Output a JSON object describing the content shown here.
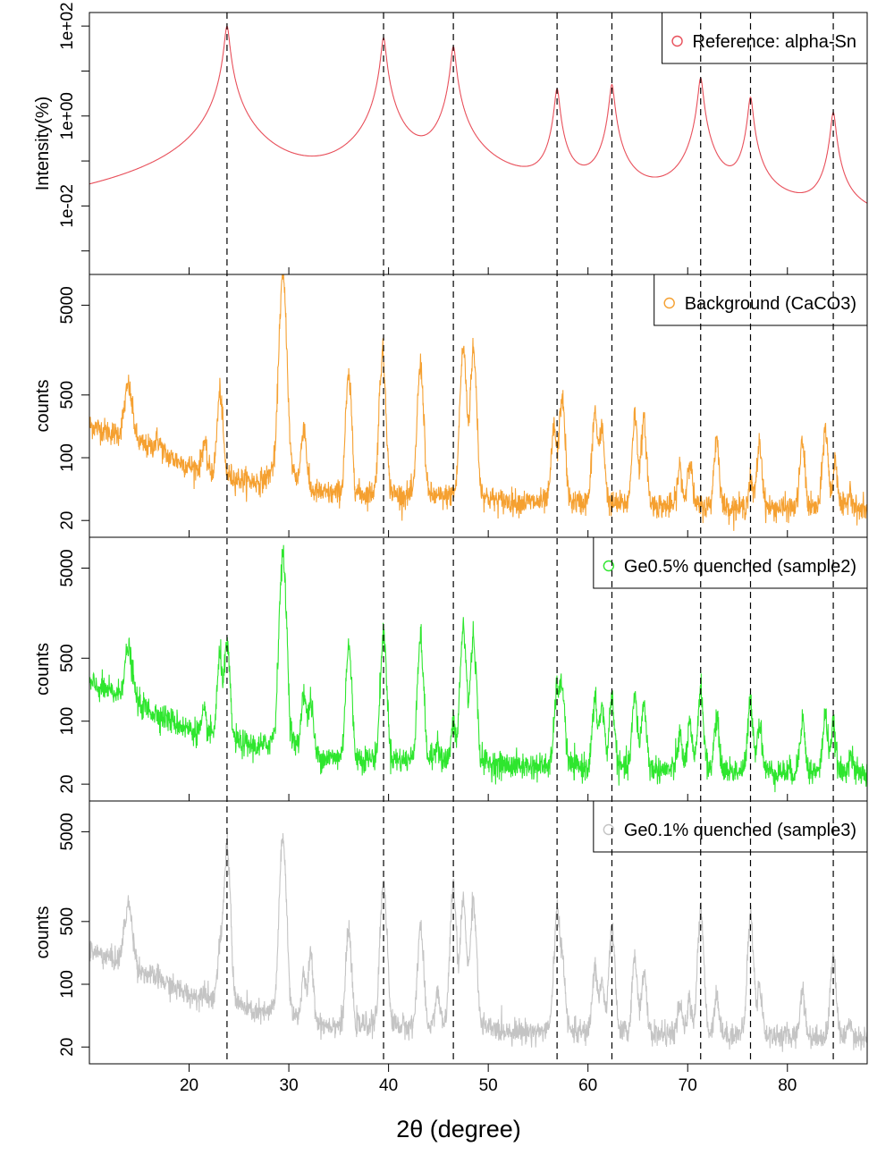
{
  "chart_data": {
    "type": "line",
    "layout": "stacked-panels",
    "xlabel": "2θ (degree)",
    "xlim": [
      10,
      88
    ],
    "x_ticks": [
      20,
      30,
      40,
      50,
      60,
      70,
      80
    ],
    "x_tick_labels": [
      "20",
      "30",
      "40",
      "50",
      "60",
      "70",
      "80"
    ],
    "reference_lines_x": [
      23.8,
      39.5,
      46.5,
      56.9,
      62.4,
      71.3,
      76.3,
      84.6
    ],
    "grid": false,
    "panels": [
      {
        "id": "reference",
        "legend": "Reference: alpha-Sn",
        "legend_position": "top-right",
        "ylabel": "Intensity(%)",
        "yscale": "log",
        "ylim": [
          0.0003,
          200
        ],
        "y_ticks": [
          0.01,
          1,
          100
        ],
        "y_tick_labels": [
          "1e-02",
          "1e+00",
          "1e+02"
        ],
        "color": "#e8505b",
        "peaks": [
          {
            "x": 23.8,
            "y": 100
          },
          {
            "x": 39.5,
            "y": 55
          },
          {
            "x": 46.5,
            "y": 35
          },
          {
            "x": 56.9,
            "y": 4
          },
          {
            "x": 62.4,
            "y": 5
          },
          {
            "x": 71.3,
            "y": 7
          },
          {
            "x": 76.3,
            "y": 2.6
          },
          {
            "x": 84.6,
            "y": 1.2
          }
        ],
        "baseline": 0.0008
      },
      {
        "id": "background",
        "legend": "Background (CaCO3)",
        "legend_position": "top-right",
        "ylabel": "counts",
        "yscale": "log",
        "ylim": [
          13,
          11000
        ],
        "y_ticks": [
          20,
          100,
          500,
          5000
        ],
        "y_tick_labels": [
          "20",
          "100",
          "500",
          "5000"
        ],
        "color": "#f5a030",
        "peaks": [
          {
            "x": 13.9,
            "y": 650
          },
          {
            "x": 16.8,
            "y": 160
          },
          {
            "x": 21.5,
            "y": 150
          },
          {
            "x": 23.1,
            "y": 560
          },
          {
            "x": 29.4,
            "y": 11000
          },
          {
            "x": 31.5,
            "y": 230
          },
          {
            "x": 36.0,
            "y": 800
          },
          {
            "x": 39.4,
            "y": 1500
          },
          {
            "x": 43.2,
            "y": 1100
          },
          {
            "x": 47.5,
            "y": 1700
          },
          {
            "x": 48.5,
            "y": 1600
          },
          {
            "x": 56.6,
            "y": 220
          },
          {
            "x": 57.4,
            "y": 500
          },
          {
            "x": 60.7,
            "y": 330
          },
          {
            "x": 61.4,
            "y": 220
          },
          {
            "x": 64.7,
            "y": 300
          },
          {
            "x": 65.6,
            "y": 260
          },
          {
            "x": 69.2,
            "y": 80
          },
          {
            "x": 70.2,
            "y": 100
          },
          {
            "x": 72.9,
            "y": 170
          },
          {
            "x": 76.3,
            "y": 55
          },
          {
            "x": 77.2,
            "y": 150
          },
          {
            "x": 81.5,
            "y": 150
          },
          {
            "x": 83.8,
            "y": 220
          },
          {
            "x": 84.8,
            "y": 95
          },
          {
            "x": 86.3,
            "y": 45
          }
        ],
        "baseline_x": [
          10,
          14,
          20,
          30,
          40,
          50,
          60,
          70,
          80,
          88
        ],
        "baseline_y": [
          230,
          160,
          80,
          38,
          35,
          32,
          30,
          28,
          27,
          26
        ],
        "noise": 0.16
      },
      {
        "id": "sample2",
        "legend": "Ge0.5% quenched (sample2)",
        "legend_position": "top-right",
        "ylabel": "counts",
        "yscale": "log",
        "ylim": [
          13,
          11000
        ],
        "y_ticks": [
          20,
          100,
          500,
          5000
        ],
        "y_tick_labels": [
          "20",
          "100",
          "500",
          "5000"
        ],
        "color": "#2ee62e",
        "peaks": [
          {
            "x": 13.9,
            "y": 650
          },
          {
            "x": 16.8,
            "y": 110
          },
          {
            "x": 21.5,
            "y": 120
          },
          {
            "x": 23.1,
            "y": 550
          },
          {
            "x": 23.8,
            "y": 700
          },
          {
            "x": 29.4,
            "y": 7000
          },
          {
            "x": 31.5,
            "y": 220
          },
          {
            "x": 32.2,
            "y": 170
          },
          {
            "x": 36.0,
            "y": 700
          },
          {
            "x": 39.5,
            "y": 950
          },
          {
            "x": 43.2,
            "y": 850
          },
          {
            "x": 44.9,
            "y": 60
          },
          {
            "x": 46.5,
            "y": 90
          },
          {
            "x": 47.5,
            "y": 1100
          },
          {
            "x": 48.5,
            "y": 900
          },
          {
            "x": 56.9,
            "y": 240
          },
          {
            "x": 57.4,
            "y": 260
          },
          {
            "x": 60.7,
            "y": 170
          },
          {
            "x": 61.4,
            "y": 150
          },
          {
            "x": 62.4,
            "y": 190
          },
          {
            "x": 64.7,
            "y": 190
          },
          {
            "x": 65.6,
            "y": 160
          },
          {
            "x": 69.2,
            "y": 70
          },
          {
            "x": 70.2,
            "y": 90
          },
          {
            "x": 71.3,
            "y": 240
          },
          {
            "x": 72.9,
            "y": 110
          },
          {
            "x": 76.3,
            "y": 170
          },
          {
            "x": 77.2,
            "y": 100
          },
          {
            "x": 81.5,
            "y": 110
          },
          {
            "x": 83.8,
            "y": 120
          },
          {
            "x": 84.6,
            "y": 90
          },
          {
            "x": 86.3,
            "y": 45
          }
        ],
        "baseline_x": [
          10,
          14,
          20,
          30,
          40,
          50,
          60,
          70,
          80,
          88
        ],
        "baseline_y": [
          260,
          170,
          80,
          38,
          35,
          32,
          30,
          28,
          27,
          26
        ],
        "noise": 0.17
      },
      {
        "id": "sample3",
        "legend": "Ge0.1% quenched (sample3)",
        "legend_position": "top-right",
        "ylabel": "counts",
        "yscale": "log",
        "ylim": [
          13,
          11000
        ],
        "y_ticks": [
          20,
          100,
          500,
          5000
        ],
        "y_tick_labels": [
          "20",
          "100",
          "500",
          "5000"
        ],
        "color": "#c4c4c4",
        "peaks": [
          {
            "x": 13.9,
            "y": 800
          },
          {
            "x": 16.8,
            "y": 120
          },
          {
            "x": 21.5,
            "y": 90
          },
          {
            "x": 23.1,
            "y": 260
          },
          {
            "x": 23.8,
            "y": 3500
          },
          {
            "x": 29.4,
            "y": 4200
          },
          {
            "x": 31.5,
            "y": 120
          },
          {
            "x": 32.2,
            "y": 210
          },
          {
            "x": 36.0,
            "y": 400
          },
          {
            "x": 39.5,
            "y": 1500
          },
          {
            "x": 43.2,
            "y": 460
          },
          {
            "x": 44.9,
            "y": 80
          },
          {
            "x": 46.5,
            "y": 1200
          },
          {
            "x": 47.5,
            "y": 900
          },
          {
            "x": 48.5,
            "y": 900
          },
          {
            "x": 56.9,
            "y": 650
          },
          {
            "x": 57.4,
            "y": 230
          },
          {
            "x": 60.7,
            "y": 160
          },
          {
            "x": 61.4,
            "y": 110
          },
          {
            "x": 62.4,
            "y": 420
          },
          {
            "x": 64.7,
            "y": 200
          },
          {
            "x": 65.6,
            "y": 140
          },
          {
            "x": 69.2,
            "y": 60
          },
          {
            "x": 70.2,
            "y": 65
          },
          {
            "x": 71.3,
            "y": 650
          },
          {
            "x": 72.9,
            "y": 80
          },
          {
            "x": 76.3,
            "y": 600
          },
          {
            "x": 77.2,
            "y": 100
          },
          {
            "x": 81.5,
            "y": 90
          },
          {
            "x": 84.6,
            "y": 220
          },
          {
            "x": 86.3,
            "y": 40
          }
        ],
        "baseline_x": [
          10,
          14,
          20,
          30,
          40,
          50,
          60,
          70,
          80,
          88
        ],
        "baseline_y": [
          240,
          160,
          75,
          35,
          32,
          30,
          28,
          27,
          26,
          25
        ],
        "noise": 0.15
      }
    ]
  }
}
